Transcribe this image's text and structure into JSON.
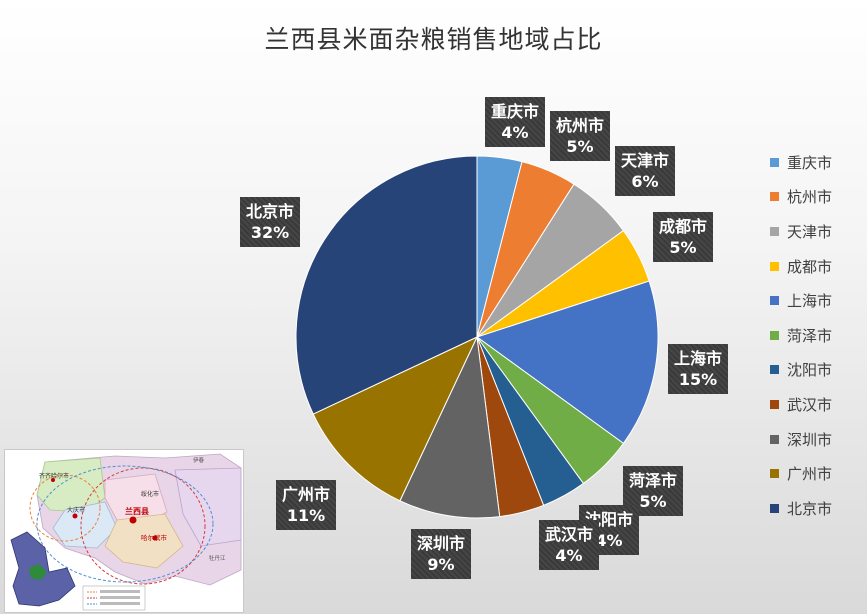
{
  "chart_data": {
    "type": "pie",
    "title": "兰西县米面杂粮销售地域占比",
    "categories": [
      "重庆市",
      "杭州市",
      "天津市",
      "成都市",
      "上海市",
      "菏泽市",
      "沈阳市",
      "武汉市",
      "深圳市",
      "广州市",
      "北京市"
    ],
    "values": [
      4,
      5,
      6,
      5,
      15,
      5,
      4,
      4,
      9,
      11,
      32
    ],
    "value_labels": [
      "4%",
      "5%",
      "6%",
      "5%",
      "15%",
      "5%",
      "4%",
      "4%",
      "9%",
      "11%",
      "32%"
    ],
    "colors": [
      "#5B9BD5",
      "#ED7D31",
      "#A5A5A5",
      "#FFC000",
      "#4472C4",
      "#70AD47",
      "#255E91",
      "#9E480E",
      "#636363",
      "#997300",
      "#264478"
    ],
    "legend_position": "right"
  },
  "inset_map": {
    "labels": [
      "齐齐哈尔市",
      "大庆市",
      "兰西县",
      "绥化市",
      "哈尔滨市",
      "伊春",
      "牡丹江"
    ]
  }
}
